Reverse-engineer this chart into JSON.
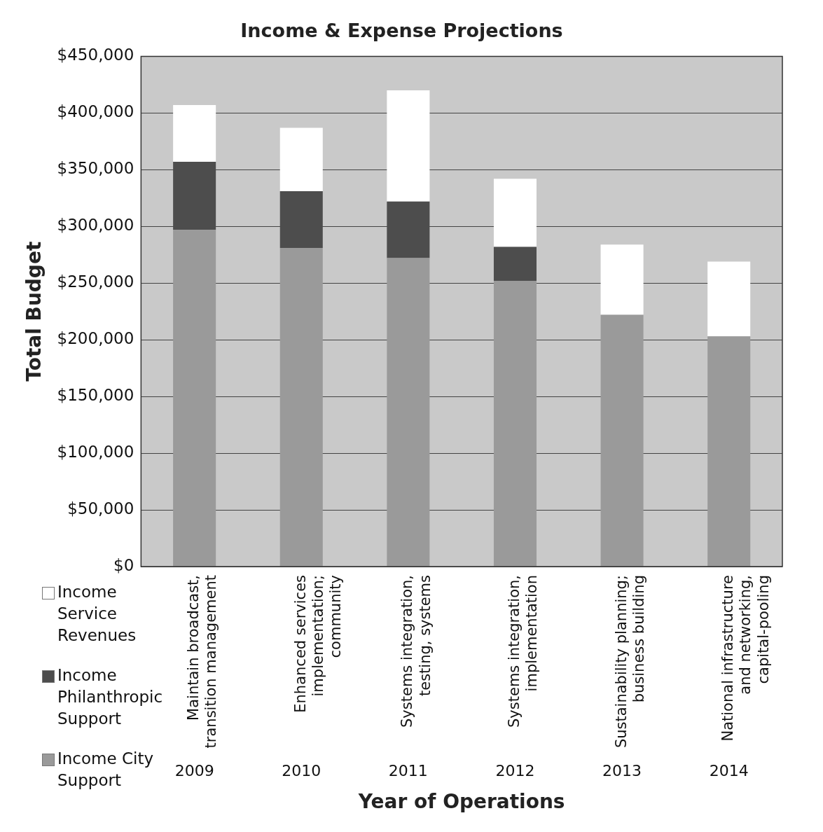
{
  "chart_data": {
    "type": "bar",
    "title": "Income & Expense Projections",
    "xlabel": "Year of Operations",
    "ylabel": "Total Budget",
    "categories": [
      "Maintain broadcast, transition management",
      "Enhanced services implementation; community",
      "Systems integration, testing, systems",
      "Systems integration, implementation",
      "Sustainability planning; business building",
      "National infrastructure and networking, capital-pooling"
    ],
    "stacked": true,
    "grid": "y",
    "legend": "bottom left",
    "ylim": [
      0,
      450000
    ],
    "yticks": [
      {
        "value": 0,
        "label": "$0"
      },
      {
        "value": 50000,
        "label": "$50,000"
      },
      {
        "value": 100000,
        "label": "$100,000"
      },
      {
        "value": 150000,
        "label": "$150,000"
      },
      {
        "value": 200000,
        "label": "$200,000"
      },
      {
        "value": 250000,
        "label": "$250,000"
      },
      {
        "value": 300000,
        "label": "$300,000"
      },
      {
        "value": 350000,
        "label": "$350,000"
      },
      {
        "value": 400000,
        "label": "$400,000"
      },
      {
        "value": 450000,
        "label": "$450,000"
      }
    ],
    "series": [
      {
        "name": "Income City Support",
        "color": "#9a9a9a",
        "values": [
          297000,
          281000,
          272000,
          252000,
          222000,
          203000
        ]
      },
      {
        "name": "Income Philanthropic Support",
        "color": "#4d4d4d",
        "values": [
          60000,
          50000,
          50000,
          30000,
          0,
          0
        ]
      },
      {
        "name": "Income Service Revenues",
        "color": "#ffffff",
        "values": [
          50000,
          56000,
          98000,
          60000,
          62000,
          66000
        ]
      }
    ],
    "annotations": [
      "2009",
      "2010",
      "2011",
      "2012",
      "2013",
      "2014"
    ]
  }
}
